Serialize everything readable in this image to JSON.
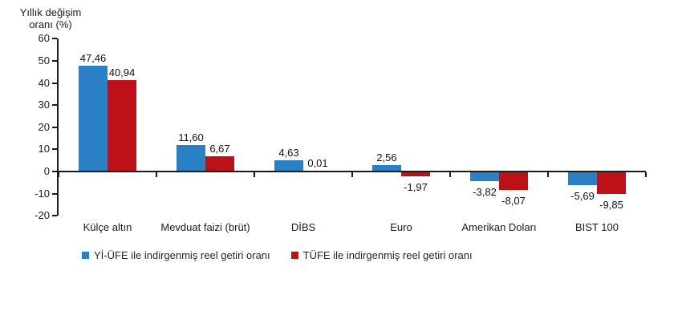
{
  "figure": {
    "background": "#ffffff"
  },
  "chart_data": {
    "type": "bar",
    "ylabel": "Yıllık değişim oranı (%)",
    "categories": [
      "Külçe altın",
      "Mevduat faizi (brüt)",
      "DİBS",
      "Euro",
      "Amerikan Doları",
      "BIST 100"
    ],
    "series": [
      {
        "name": "Yİ-ÜFE ile indirgenmiş reel getiri oranı",
        "color": "#2980c4",
        "values": [
          47.46,
          11.6,
          4.63,
          2.56,
          -3.82,
          -5.69
        ]
      },
      {
        "name": "TÜFE ile indirgenmiş reel getiri oranı",
        "color": "#be1117",
        "values": [
          40.94,
          6.67,
          0.01,
          -1.97,
          -8.07,
          -9.85
        ]
      }
    ],
    "ylim": [
      -20,
      60
    ],
    "yticks": [
      60,
      50,
      40,
      30,
      20,
      10,
      0,
      -10,
      -20
    ],
    "grid": false,
    "legend_position": "bottom",
    "decimal_separator": ",",
    "axis_color": "#1a1a1a",
    "text_color": "#1a1a1a"
  }
}
